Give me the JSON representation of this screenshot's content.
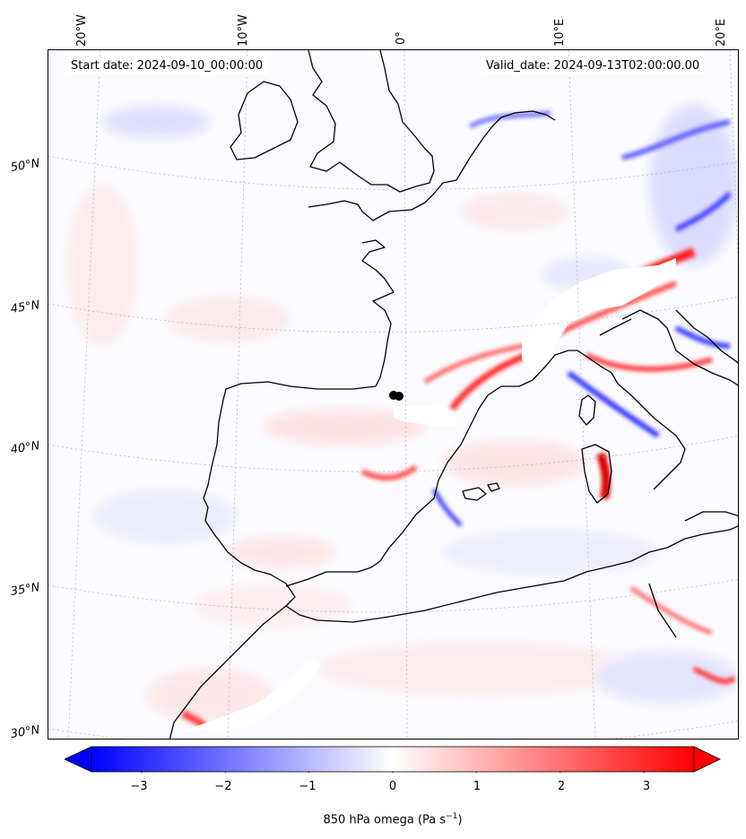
{
  "header": {
    "start_date": "Start date: 2024-09-10_00:00:00",
    "valid_date": "Valid_date: 2024-09-13T02:00:00.00"
  },
  "map": {
    "lat_labels": [
      "50°N",
      "45°N",
      "40°N",
      "35°N",
      "30°N"
    ],
    "lon_labels": [
      "20°W",
      "10°W",
      "0°",
      "10°E",
      "20°E"
    ],
    "colors": {
      "positive": "#ff0000",
      "negative": "#0000ff",
      "neutral": "#ffffff",
      "coastline": "#000000",
      "gridline": "#b0b0b0"
    }
  },
  "colorbar": {
    "ticks": [
      "−3",
      "−2",
      "−1",
      "0",
      "1",
      "2",
      "3"
    ],
    "tick_values": [
      -3,
      -2,
      -1,
      0,
      1,
      2,
      3
    ],
    "range": [
      -3.6,
      3.6
    ],
    "label_text": "850 hPa omega (Pa s",
    "label_exp": "−1",
    "label_close": ")"
  }
}
